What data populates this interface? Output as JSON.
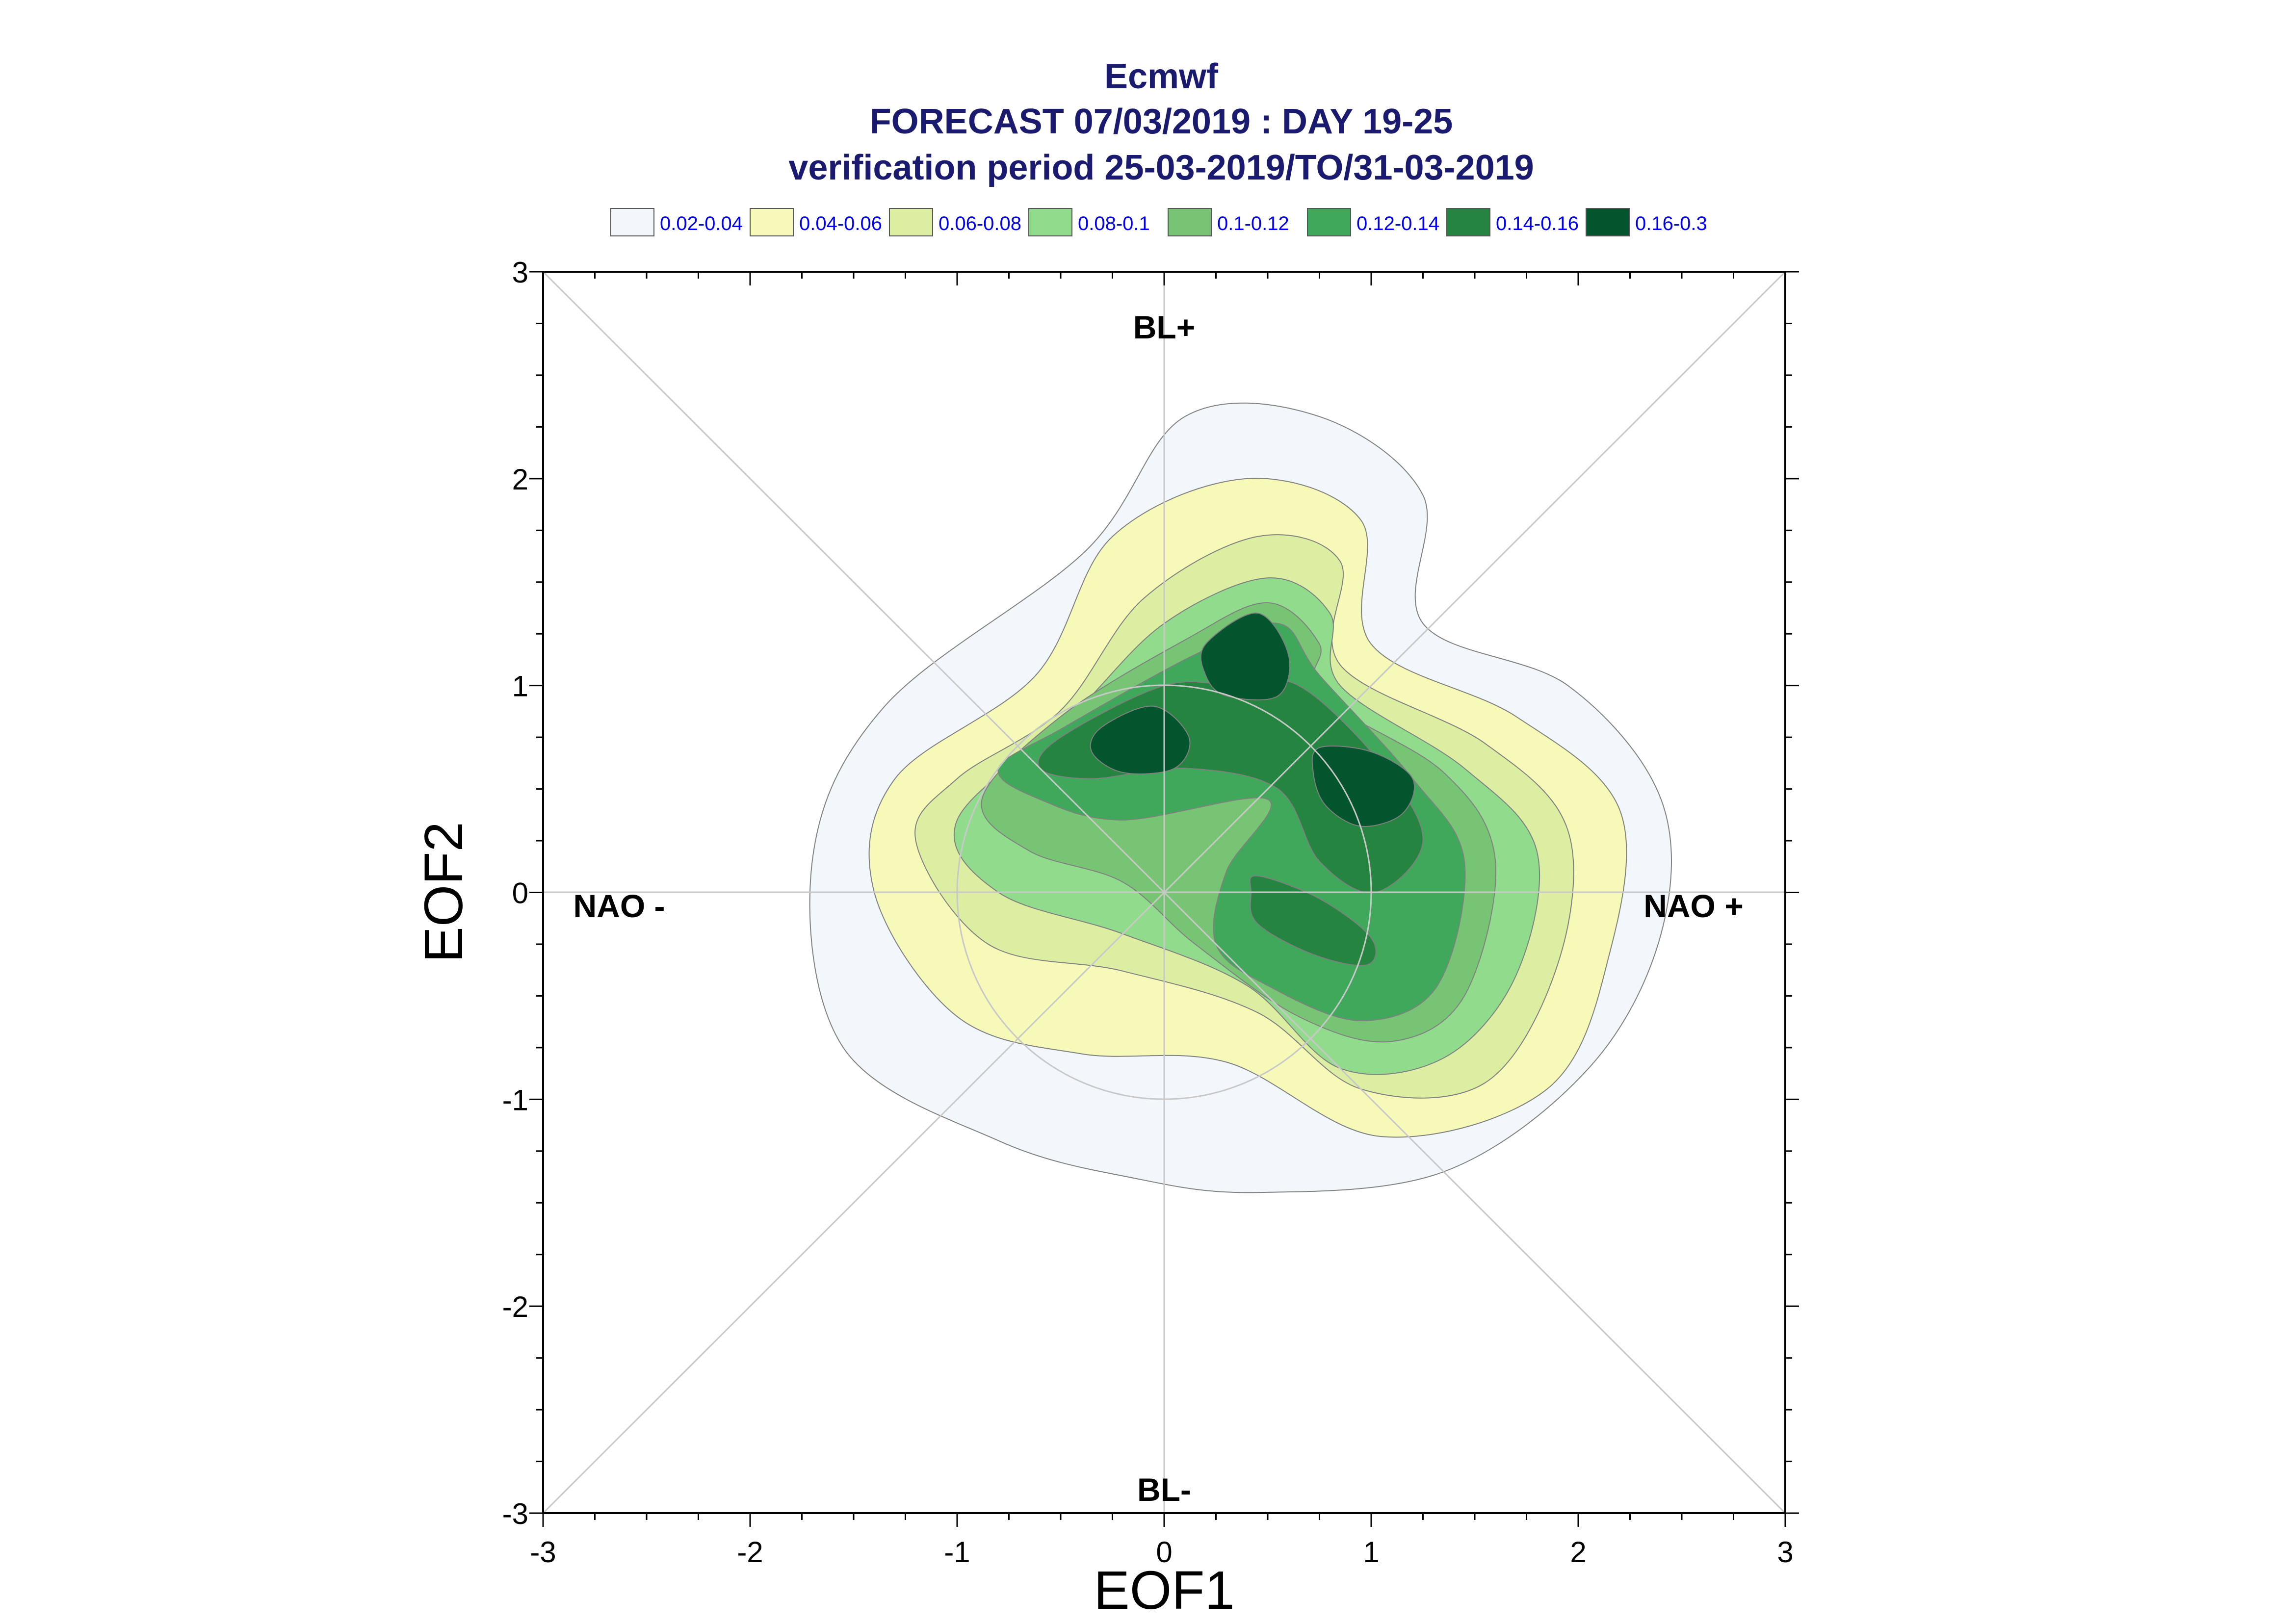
{
  "chart_data": {
    "type": "contour",
    "title": "Ecmwf",
    "subtitle_1": "FORECAST 07/03/2019 : DAY 19-25",
    "subtitle_2": "verification period 25-03-2019/TO/31-03-2019",
    "xlabel": "EOF1",
    "ylabel": "EOF2",
    "xlim": [
      -3,
      3
    ],
    "ylim": [
      -3,
      3
    ],
    "xticks": [
      "-3",
      "-2",
      "-1",
      "0",
      "1",
      "2",
      "3"
    ],
    "yticks": [
      "-3",
      "-2",
      "-1",
      "0",
      "1",
      "2",
      "3"
    ],
    "grid": false,
    "legend_position": "top",
    "legend": [
      {
        "label": "0.02-0.04",
        "color": "#f2f7fb"
      },
      {
        "label": "0.04-0.06",
        "color": "#f6f9b8"
      },
      {
        "label": "0.06-0.08",
        "color": "#dbeea2"
      },
      {
        "label": "0.08-0.1",
        "color": "#91dc8c"
      },
      {
        "label": "0.1-0.12",
        "color": "#77c474"
      },
      {
        "label": "0.12-0.14",
        "color": "#40a85a"
      },
      {
        "label": "0.14-0.16",
        "color": "#248440"
      },
      {
        "label": "0.16-0.3",
        "color": "#03552e"
      }
    ],
    "regime_labels": {
      "top": "BL+",
      "bottom": "BL-",
      "left": "NAO -",
      "right": "NAO +"
    },
    "reference_circle_radius": 1.0,
    "contours": [
      {
        "level": "0.02-0.04",
        "points": [
          [
            -0.38,
            1.65
          ],
          [
            0.1,
            2.3
          ],
          [
            0.75,
            2.3
          ],
          [
            1.25,
            1.92
          ],
          [
            1.25,
            1.3
          ],
          [
            1.95,
            1.0
          ],
          [
            2.4,
            0.45
          ],
          [
            2.4,
            -0.2
          ],
          [
            2.05,
            -0.85
          ],
          [
            1.35,
            -1.35
          ],
          [
            0.45,
            -1.45
          ],
          [
            -0.15,
            -1.38
          ],
          [
            -0.8,
            -1.2
          ],
          [
            -1.55,
            -0.75
          ],
          [
            -1.7,
            0.15
          ],
          [
            -1.35,
            0.9
          ]
        ]
      },
      {
        "level": "0.04-0.06",
        "points": [
          [
            -0.62,
            1.05
          ],
          [
            -0.25,
            1.72
          ],
          [
            0.4,
            2.0
          ],
          [
            0.95,
            1.8
          ],
          [
            1.0,
            1.2
          ],
          [
            1.7,
            0.85
          ],
          [
            2.2,
            0.4
          ],
          [
            2.15,
            -0.3
          ],
          [
            1.85,
            -0.95
          ],
          [
            1.05,
            -1.18
          ],
          [
            0.3,
            -0.82
          ],
          [
            -0.4,
            -0.78
          ],
          [
            -1.0,
            -0.6
          ],
          [
            -1.4,
            0.0
          ],
          [
            -1.3,
            0.55
          ]
        ]
      },
      {
        "level": "0.06-0.08",
        "points": [
          [
            -0.5,
            0.88
          ],
          [
            -0.1,
            1.42
          ],
          [
            0.45,
            1.72
          ],
          [
            0.85,
            1.6
          ],
          [
            0.85,
            1.1
          ],
          [
            1.55,
            0.72
          ],
          [
            1.95,
            0.3
          ],
          [
            1.9,
            -0.35
          ],
          [
            1.55,
            -0.92
          ],
          [
            0.95,
            -0.95
          ],
          [
            0.45,
            -0.58
          ],
          [
            -0.2,
            -0.38
          ],
          [
            -0.85,
            -0.25
          ],
          [
            -1.2,
            0.25
          ],
          [
            -1.0,
            0.55
          ]
        ]
      },
      {
        "level": "0.08-0.1",
        "points": [
          [
            -0.45,
            0.85
          ],
          [
            0.0,
            1.3
          ],
          [
            0.5,
            1.52
          ],
          [
            0.8,
            1.35
          ],
          [
            0.85,
            1.0
          ],
          [
            1.45,
            0.6
          ],
          [
            1.8,
            0.2
          ],
          [
            1.7,
            -0.4
          ],
          [
            1.35,
            -0.8
          ],
          [
            0.85,
            -0.85
          ],
          [
            0.4,
            -0.45
          ],
          [
            -0.2,
            -0.2
          ],
          [
            -0.8,
            0.0
          ],
          [
            -1.0,
            0.35
          ]
        ]
      },
      {
        "level": "0.1-0.12",
        "points": [
          [
            -0.5,
            0.85
          ],
          [
            0.1,
            1.22
          ],
          [
            0.5,
            1.4
          ],
          [
            0.75,
            1.2
          ],
          [
            0.75,
            0.95
          ],
          [
            1.35,
            0.58
          ],
          [
            1.6,
            0.15
          ],
          [
            1.45,
            -0.5
          ],
          [
            1.1,
            -0.72
          ],
          [
            0.65,
            -0.6
          ],
          [
            0.15,
            -0.25
          ],
          [
            -0.2,
            0.05
          ],
          [
            -0.65,
            0.2
          ],
          [
            -0.88,
            0.45
          ]
        ]
      },
      {
        "level": "0.12-0.14",
        "points": [
          [
            -0.48,
            0.8
          ],
          [
            0.15,
            1.15
          ],
          [
            0.55,
            1.3
          ],
          [
            0.75,
            1.05
          ],
          [
            1.2,
            0.55
          ],
          [
            1.45,
            0.15
          ],
          [
            1.32,
            -0.45
          ],
          [
            0.95,
            -0.62
          ],
          [
            0.5,
            -0.45
          ],
          [
            0.25,
            -0.25
          ],
          [
            0.3,
            0.1
          ],
          [
            0.5,
            0.45
          ],
          [
            -0.2,
            0.35
          ],
          [
            -0.6,
            0.45
          ],
          [
            -0.8,
            0.6
          ]
        ]
      },
      {
        "level": "0.14-0.16",
        "points": [
          [
            -0.5,
            0.75
          ],
          [
            0.0,
            1.0
          ],
          [
            0.35,
            1.0
          ],
          [
            0.65,
            1.0
          ],
          [
            1.05,
            0.62
          ],
          [
            1.25,
            0.25
          ],
          [
            1.02,
            0.0
          ],
          [
            0.75,
            0.15
          ],
          [
            0.55,
            0.5
          ],
          [
            0.1,
            0.6
          ],
          [
            -0.35,
            0.55
          ],
          [
            -0.6,
            0.6
          ]
        ]
      },
      {
        "level": "0.14-0.16",
        "points": [
          [
            0.45,
            0.08
          ],
          [
            0.75,
            -0.03
          ],
          [
            1.0,
            -0.22
          ],
          [
            0.98,
            -0.35
          ],
          [
            0.72,
            -0.3
          ],
          [
            0.45,
            -0.15
          ],
          [
            0.42,
            0.0
          ]
        ]
      },
      {
        "level": "0.16-0.3",
        "points": [
          [
            0.2,
            1.2
          ],
          [
            0.45,
            1.35
          ],
          [
            0.6,
            1.15
          ],
          [
            0.55,
            0.95
          ],
          [
            0.3,
            0.95
          ],
          [
            0.2,
            1.05
          ]
        ]
      },
      {
        "level": "0.16-0.3",
        "points": [
          [
            -0.3,
            0.8
          ],
          [
            -0.05,
            0.9
          ],
          [
            0.12,
            0.75
          ],
          [
            0.05,
            0.6
          ],
          [
            -0.2,
            0.58
          ],
          [
            -0.35,
            0.68
          ]
        ]
      },
      {
        "level": "0.16-0.3",
        "points": [
          [
            0.75,
            0.7
          ],
          [
            1.0,
            0.68
          ],
          [
            1.2,
            0.55
          ],
          [
            1.15,
            0.38
          ],
          [
            0.95,
            0.32
          ],
          [
            0.78,
            0.42
          ],
          [
            0.72,
            0.58
          ]
        ]
      }
    ]
  }
}
